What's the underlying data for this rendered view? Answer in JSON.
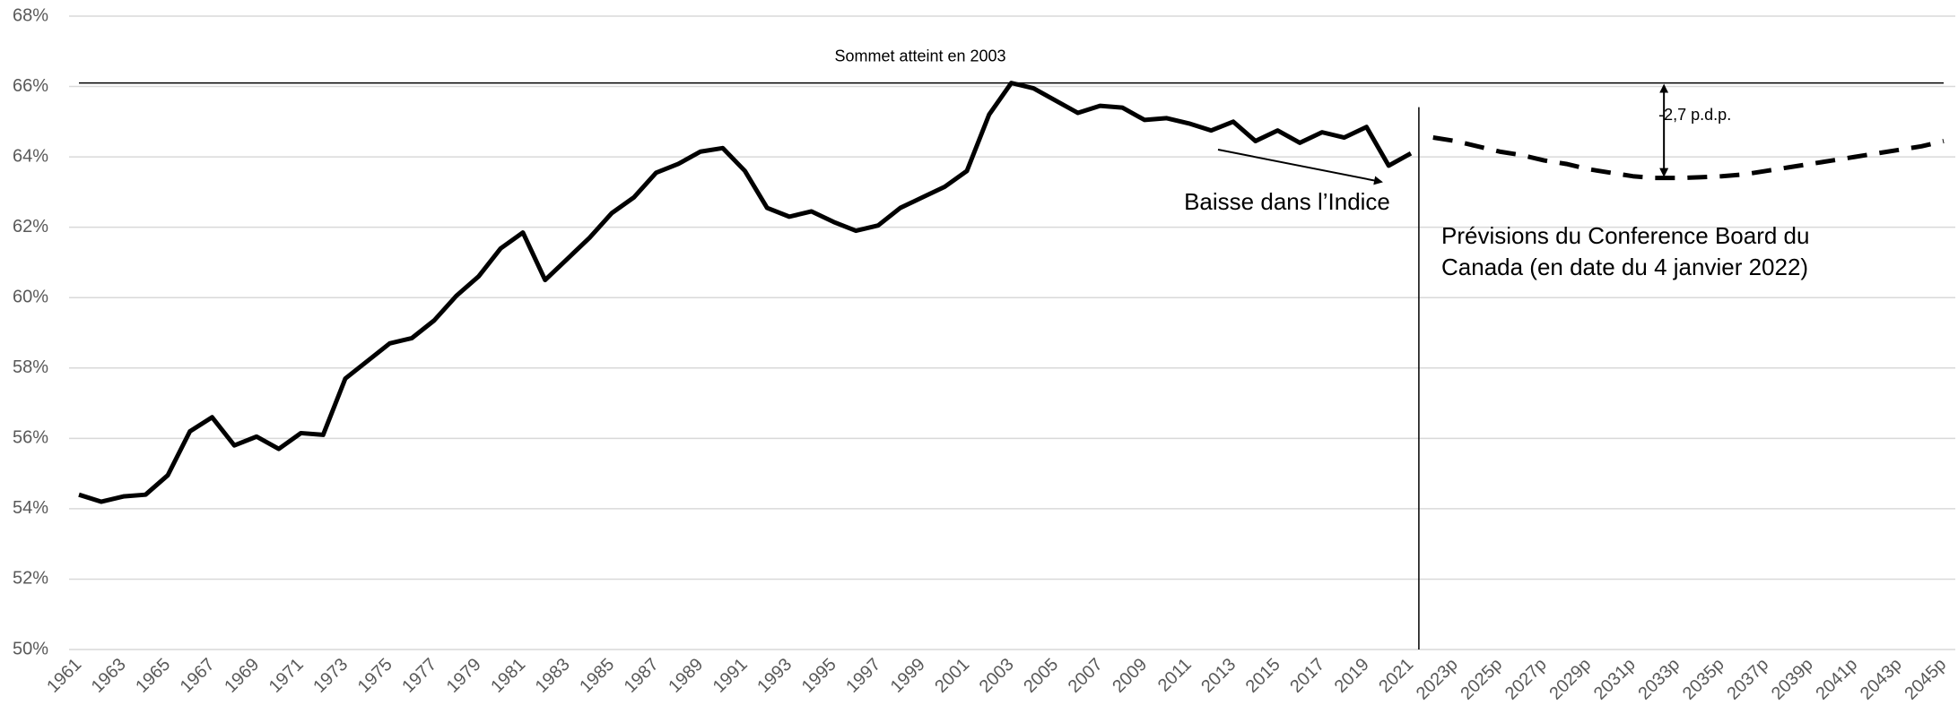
{
  "chart_data": {
    "type": "line",
    "categories": [
      "1961",
      null,
      "1963",
      null,
      "1965",
      null,
      "1967",
      null,
      "1969",
      null,
      "1971",
      null,
      "1973",
      null,
      "1975",
      null,
      "1977",
      null,
      "1979",
      null,
      "1981",
      null,
      "1983",
      null,
      "1985",
      null,
      "1987",
      null,
      "1989",
      null,
      "1991",
      null,
      "1993",
      null,
      "1995",
      null,
      "1997",
      null,
      "1999",
      null,
      "2001",
      null,
      "2003",
      null,
      "2005",
      null,
      "2007",
      null,
      "2009",
      null,
      "2011",
      null,
      "2013",
      null,
      "2015",
      null,
      "2017",
      null,
      "2019",
      null,
      "2021",
      null,
      "2023p",
      null,
      "2025p",
      null,
      "2027p",
      null,
      "2029p",
      null,
      "2031p",
      null,
      "2033p",
      null,
      "2035p",
      null,
      "2037p",
      null,
      "2039p",
      null,
      "2041p",
      null,
      "2043p",
      null,
      "2045p"
    ],
    "series": [
      {
        "color": "#000000",
        "style": "solid",
        "values": [
          54.4,
          54.2,
          54.35,
          54.4,
          54.95,
          56.2,
          56.6,
          55.8,
          56.05,
          55.7,
          56.15,
          56.1,
          57.7,
          58.2,
          58.7,
          58.85,
          59.35,
          60.05,
          60.6,
          61.4,
          61.85,
          60.5,
          61.1,
          61.7,
          62.4,
          62.85,
          63.55,
          63.8,
          64.15,
          64.25,
          63.6,
          62.55,
          62.3,
          62.45,
          62.15,
          61.9,
          62.05,
          62.55,
          62.85,
          63.15,
          63.6,
          65.2,
          66.1,
          65.95,
          65.6,
          65.25,
          65.45,
          65.4,
          65.05,
          65.1,
          64.95,
          64.75,
          65.0,
          64.45,
          64.75,
          64.4,
          64.7,
          64.55,
          64.85,
          63.75,
          64.1,
          null,
          null,
          null,
          null,
          null,
          null,
          null,
          null,
          null,
          null,
          null,
          null,
          null,
          null,
          null,
          null,
          null,
          null,
          null,
          null,
          null,
          null,
          null,
          null
        ]
      },
      {
        "color": "#000000",
        "style": "dashed",
        "values": [
          null,
          null,
          null,
          null,
          null,
          null,
          null,
          null,
          null,
          null,
          null,
          null,
          null,
          null,
          null,
          null,
          null,
          null,
          null,
          null,
          null,
          null,
          null,
          null,
          null,
          null,
          null,
          null,
          null,
          null,
          null,
          null,
          null,
          null,
          null,
          null,
          null,
          null,
          null,
          null,
          null,
          null,
          null,
          null,
          null,
          null,
          null,
          null,
          null,
          null,
          null,
          null,
          null,
          null,
          null,
          null,
          null,
          null,
          null,
          null,
          null,
          64.55,
          64.45,
          64.3,
          64.15,
          64.05,
          63.9,
          63.8,
          63.65,
          63.55,
          63.45,
          63.4,
          63.4,
          63.42,
          63.45,
          63.5,
          63.6,
          63.7,
          63.8,
          63.9,
          64.0,
          64.1,
          64.2,
          64.3,
          64.45
        ]
      }
    ],
    "ylim": [
      50,
      68
    ],
    "yticks": [
      {
        "value": 50,
        "label": "50%"
      },
      {
        "value": 52,
        "label": "52%"
      },
      {
        "value": 54,
        "label": "54%"
      },
      {
        "value": 56,
        "label": "56%"
      },
      {
        "value": 58,
        "label": "58%"
      },
      {
        "value": 60,
        "label": "60%"
      },
      {
        "value": 62,
        "label": "62%"
      },
      {
        "value": 64,
        "label": "64%"
      },
      {
        "value": 66,
        "label": "66%"
      },
      {
        "value": 68,
        "label": "68%"
      }
    ],
    "grid": true,
    "peak_line": {
      "value": 66.1,
      "label": "Sommet atteint en 2003"
    },
    "annotations": {
      "decline": "Baisse dans l’Indice",
      "forecast_note": [
        "Prévisions du Conference Board du",
        "Canada (en date du 4 janvier 2022)"
      ],
      "gap": "-2,7 p.d.p."
    }
  }
}
